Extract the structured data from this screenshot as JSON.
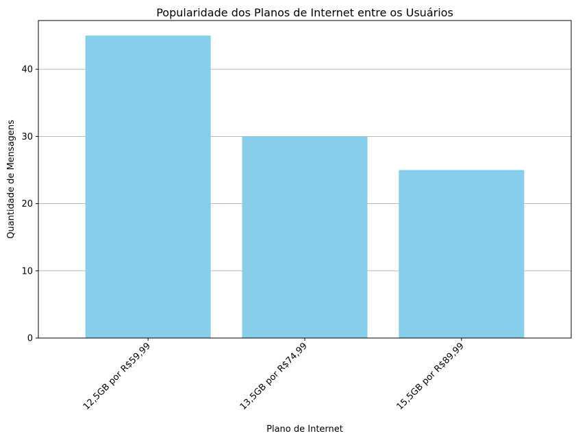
{
  "chart_data": {
    "type": "bar",
    "title": "Popularidade dos Planos de Internet entre os Usuários",
    "xlabel": "Plano de Internet",
    "ylabel": "Quantidade de Mensagens",
    "categories": [
      "12,5GB por R$59,99",
      "13,5GB por R$74,99",
      "15,5GB por R$89,99"
    ],
    "values": [
      45,
      30,
      25
    ],
    "ylim": [
      0,
      47.25
    ],
    "yticks": [
      0,
      10,
      20,
      30,
      40
    ],
    "grid": "y",
    "bar_color": "#87ceeb",
    "grid_color": "#b0b0b0",
    "xtick_rotation_deg": 45
  }
}
